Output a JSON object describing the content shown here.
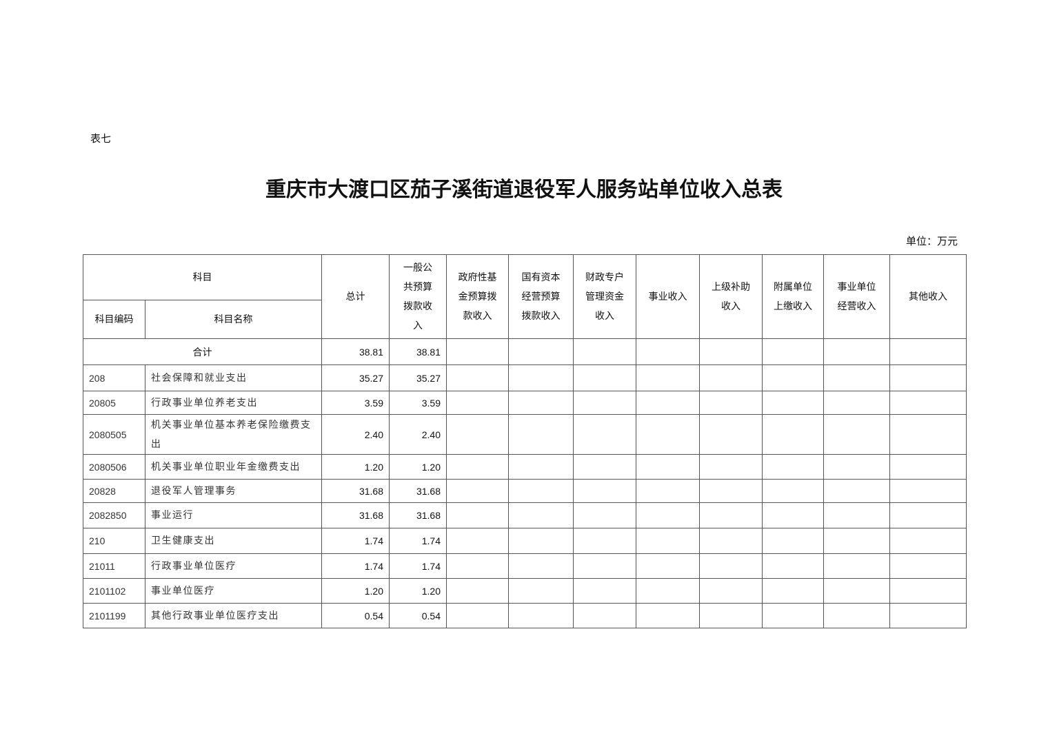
{
  "table_label": "表七",
  "title": "重庆市大渡口区茄子溪街道退役军人服务站单位收入总表",
  "unit": "单位：万元",
  "headers": {
    "subject": "科目",
    "code": "科目编码",
    "name": "科目名称",
    "total": "总计",
    "general": "一般公共预算拨款收入",
    "gov_fund": "政府性基金预算拨款收入",
    "state_capital": "国有资本经营预算拨款收入",
    "fiscal_account": "财政专户管理资金收入",
    "business": "事业收入",
    "superior": "上级补助收入",
    "affiliated": "附属单位上缴收入",
    "operating": "事业单位经营收入",
    "other": "其他收入"
  },
  "total_row": {
    "label": "合计",
    "total": "38.81",
    "general": "38.81"
  },
  "rows": [
    {
      "code": "208",
      "name": "社会保障和就业支出",
      "total": "35.27",
      "general": "35.27"
    },
    {
      "code": "20805",
      "name": "行政事业单位养老支出",
      "total": "3.59",
      "general": "3.59"
    },
    {
      "code": "2080505",
      "name": "机关事业单位基本养老保险缴费支出",
      "total": "2.40",
      "general": "2.40"
    },
    {
      "code": "2080506",
      "name": "机关事业单位职业年金缴费支出",
      "total": "1.20",
      "general": "1.20"
    },
    {
      "code": "20828",
      "name": "退役军人管理事务",
      "total": "31.68",
      "general": "31.68"
    },
    {
      "code": "2082850",
      "name": "事业运行",
      "total": "31.68",
      "general": "31.68"
    },
    {
      "code": "210",
      "name": "卫生健康支出",
      "total": "1.74",
      "general": "1.74"
    },
    {
      "code": "21011",
      "name": "行政事业单位医疗",
      "total": "1.74",
      "general": "1.74"
    },
    {
      "code": "2101102",
      "name": "事业单位医疗",
      "total": "1.20",
      "general": "1.20"
    },
    {
      "code": "2101199",
      "name": "其他行政事业单位医疗支出",
      "total": "0.54",
      "general": "0.54"
    }
  ]
}
